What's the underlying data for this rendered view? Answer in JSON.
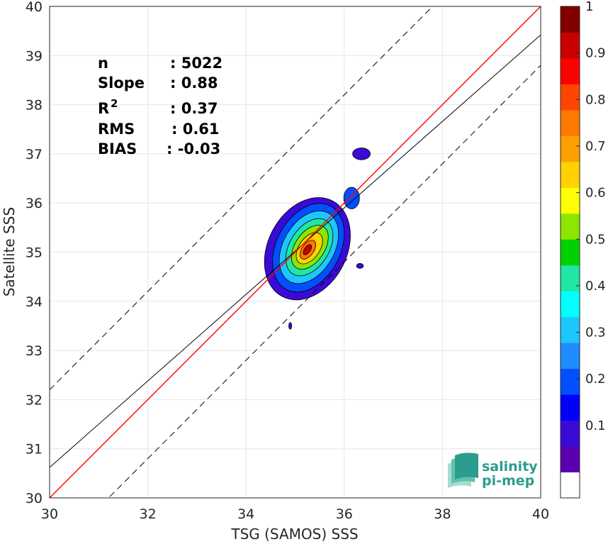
{
  "chart_data": {
    "type": "contour",
    "xlabel": "TSG (SAMOS) SSS",
    "ylabel": "Satellite SSS",
    "xlim": [
      30,
      40
    ],
    "ylim": [
      30,
      40
    ],
    "xticks": [
      30,
      32,
      34,
      36,
      38,
      40
    ],
    "yticks": [
      30,
      31,
      32,
      33,
      34,
      35,
      36,
      37,
      38,
      39,
      40
    ],
    "grid": true,
    "stats": [
      {
        "label": "n",
        "value": ": 5022"
      },
      {
        "label": "Slope",
        "value": ": 0.88"
      },
      {
        "label": "R",
        "sup": "2",
        "value": ": 0.37"
      },
      {
        "label": "RMS",
        "value": ": 0.61"
      },
      {
        "label": "BIAS",
        "value": ": -0.03"
      }
    ],
    "lines": {
      "identity": {
        "slope": 1,
        "intercept": 0,
        "color": "#ff0000"
      },
      "fit": {
        "slope": 0.88,
        "intercept": 4.22,
        "color": "#000000"
      },
      "offsets": [
        2.2,
        -1.2
      ]
    },
    "density_peak": {
      "x": 35.25,
      "y": 35.05
    },
    "colorbar": {
      "ticks": [
        0.1,
        0.2,
        0.3,
        0.4,
        0.5,
        0.6,
        0.7,
        0.8,
        0.9,
        1
      ],
      "colors": [
        "#ffffff",
        "#5b00b0",
        "#3a0ad6",
        "#0000ff",
        "#0050ff",
        "#1e8cff",
        "#1ec6ff",
        "#00ffff",
        "#20e6a6",
        "#00d200",
        "#8ce600",
        "#ffff00",
        "#ffd200",
        "#ffa000",
        "#ff7800",
        "#ff4600",
        "#ff0000",
        "#c80000",
        "#820000"
      ]
    }
  },
  "logo": {
    "line1": "salinity",
    "line2": "pi-mep"
  }
}
